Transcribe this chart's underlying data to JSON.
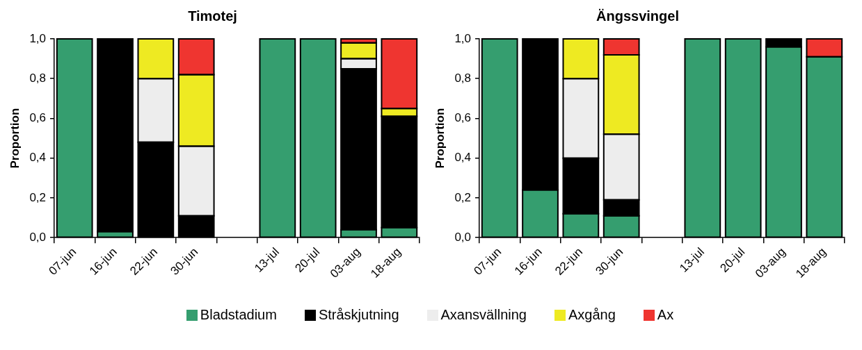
{
  "chart_data": [
    {
      "type": "bar",
      "stacked": true,
      "title": "Timotej",
      "ylabel": "Proportion",
      "categories": [
        "07-jun",
        "16-jun",
        "22-jun",
        "30-jun",
        null,
        "13-jul",
        "20-jul",
        "03-aug",
        "18-aug"
      ],
      "ylim": [
        0,
        1
      ],
      "yticks": [
        {
          "value": 0,
          "label": "0,0"
        },
        {
          "value": 0.2,
          "label": "0,2"
        },
        {
          "value": 0.4,
          "label": "0,4"
        },
        {
          "value": 0.6,
          "label": "0,6"
        },
        {
          "value": 0.8,
          "label": "0,8"
        },
        {
          "value": 1,
          "label": "1,0"
        }
      ],
      "grid": false,
      "legend": "bottom",
      "series": [
        {
          "name": "Bladstadium",
          "color": "#359e6f",
          "values": [
            1,
            0.03,
            0,
            0,
            null,
            1,
            1,
            0.04,
            0.05
          ]
        },
        {
          "name": "Stråskjutning",
          "color": "#000000",
          "values": [
            0,
            0.97,
            0.48,
            0.11,
            null,
            0,
            0,
            0.81,
            0.56
          ]
        },
        {
          "name": "Axansvällning",
          "color": "#ededed",
          "values": [
            0,
            0,
            0.32,
            0.35,
            null,
            0,
            0,
            0.05,
            0
          ]
        },
        {
          "name": "Axgång",
          "color": "#eeea22",
          "values": [
            0,
            0,
            0.2,
            0.36,
            null,
            0,
            0,
            0.08,
            0.04
          ]
        },
        {
          "name": "Ax",
          "color": "#ef3530",
          "values": [
            0,
            0,
            0,
            0.18,
            null,
            0,
            0,
            0.02,
            0.35
          ]
        }
      ]
    },
    {
      "type": "bar",
      "stacked": true,
      "title": "Ängssvingel",
      "ylabel": "Proportion",
      "categories": [
        "07-jun",
        "16-jun",
        "22-jun",
        "30-jun",
        null,
        "13-jul",
        "20-jul",
        "03-aug",
        "18-aug"
      ],
      "ylim": [
        0,
        1
      ],
      "yticks": [
        {
          "value": 0,
          "label": "0,0"
        },
        {
          "value": 0.2,
          "label": "0,2"
        },
        {
          "value": 0.4,
          "label": "0,4"
        },
        {
          "value": 0.6,
          "label": "0,6"
        },
        {
          "value": 0.8,
          "label": "0,8"
        },
        {
          "value": 1,
          "label": "1,0"
        }
      ],
      "grid": false,
      "series": [
        {
          "color": "#359e6f",
          "values": [
            1,
            0.24,
            0.12,
            0.11,
            null,
            1,
            1,
            0.96,
            0.91
          ]
        },
        {
          "color": "#000000",
          "values": [
            0,
            0.76,
            0.28,
            0.08,
            null,
            0,
            0,
            0.04,
            0
          ]
        },
        {
          "color": "#ededed",
          "values": [
            0,
            0,
            0.4,
            0.33,
            null,
            0,
            0,
            0,
            0
          ]
        },
        {
          "color": "#eeea22",
          "values": [
            0,
            0,
            0.2,
            0.4,
            null,
            0,
            0,
            0,
            0
          ]
        },
        {
          "color": "#ef3530",
          "values": [
            0,
            0,
            0,
            0.08,
            null,
            0,
            0,
            0,
            0.09
          ]
        }
      ]
    }
  ]
}
